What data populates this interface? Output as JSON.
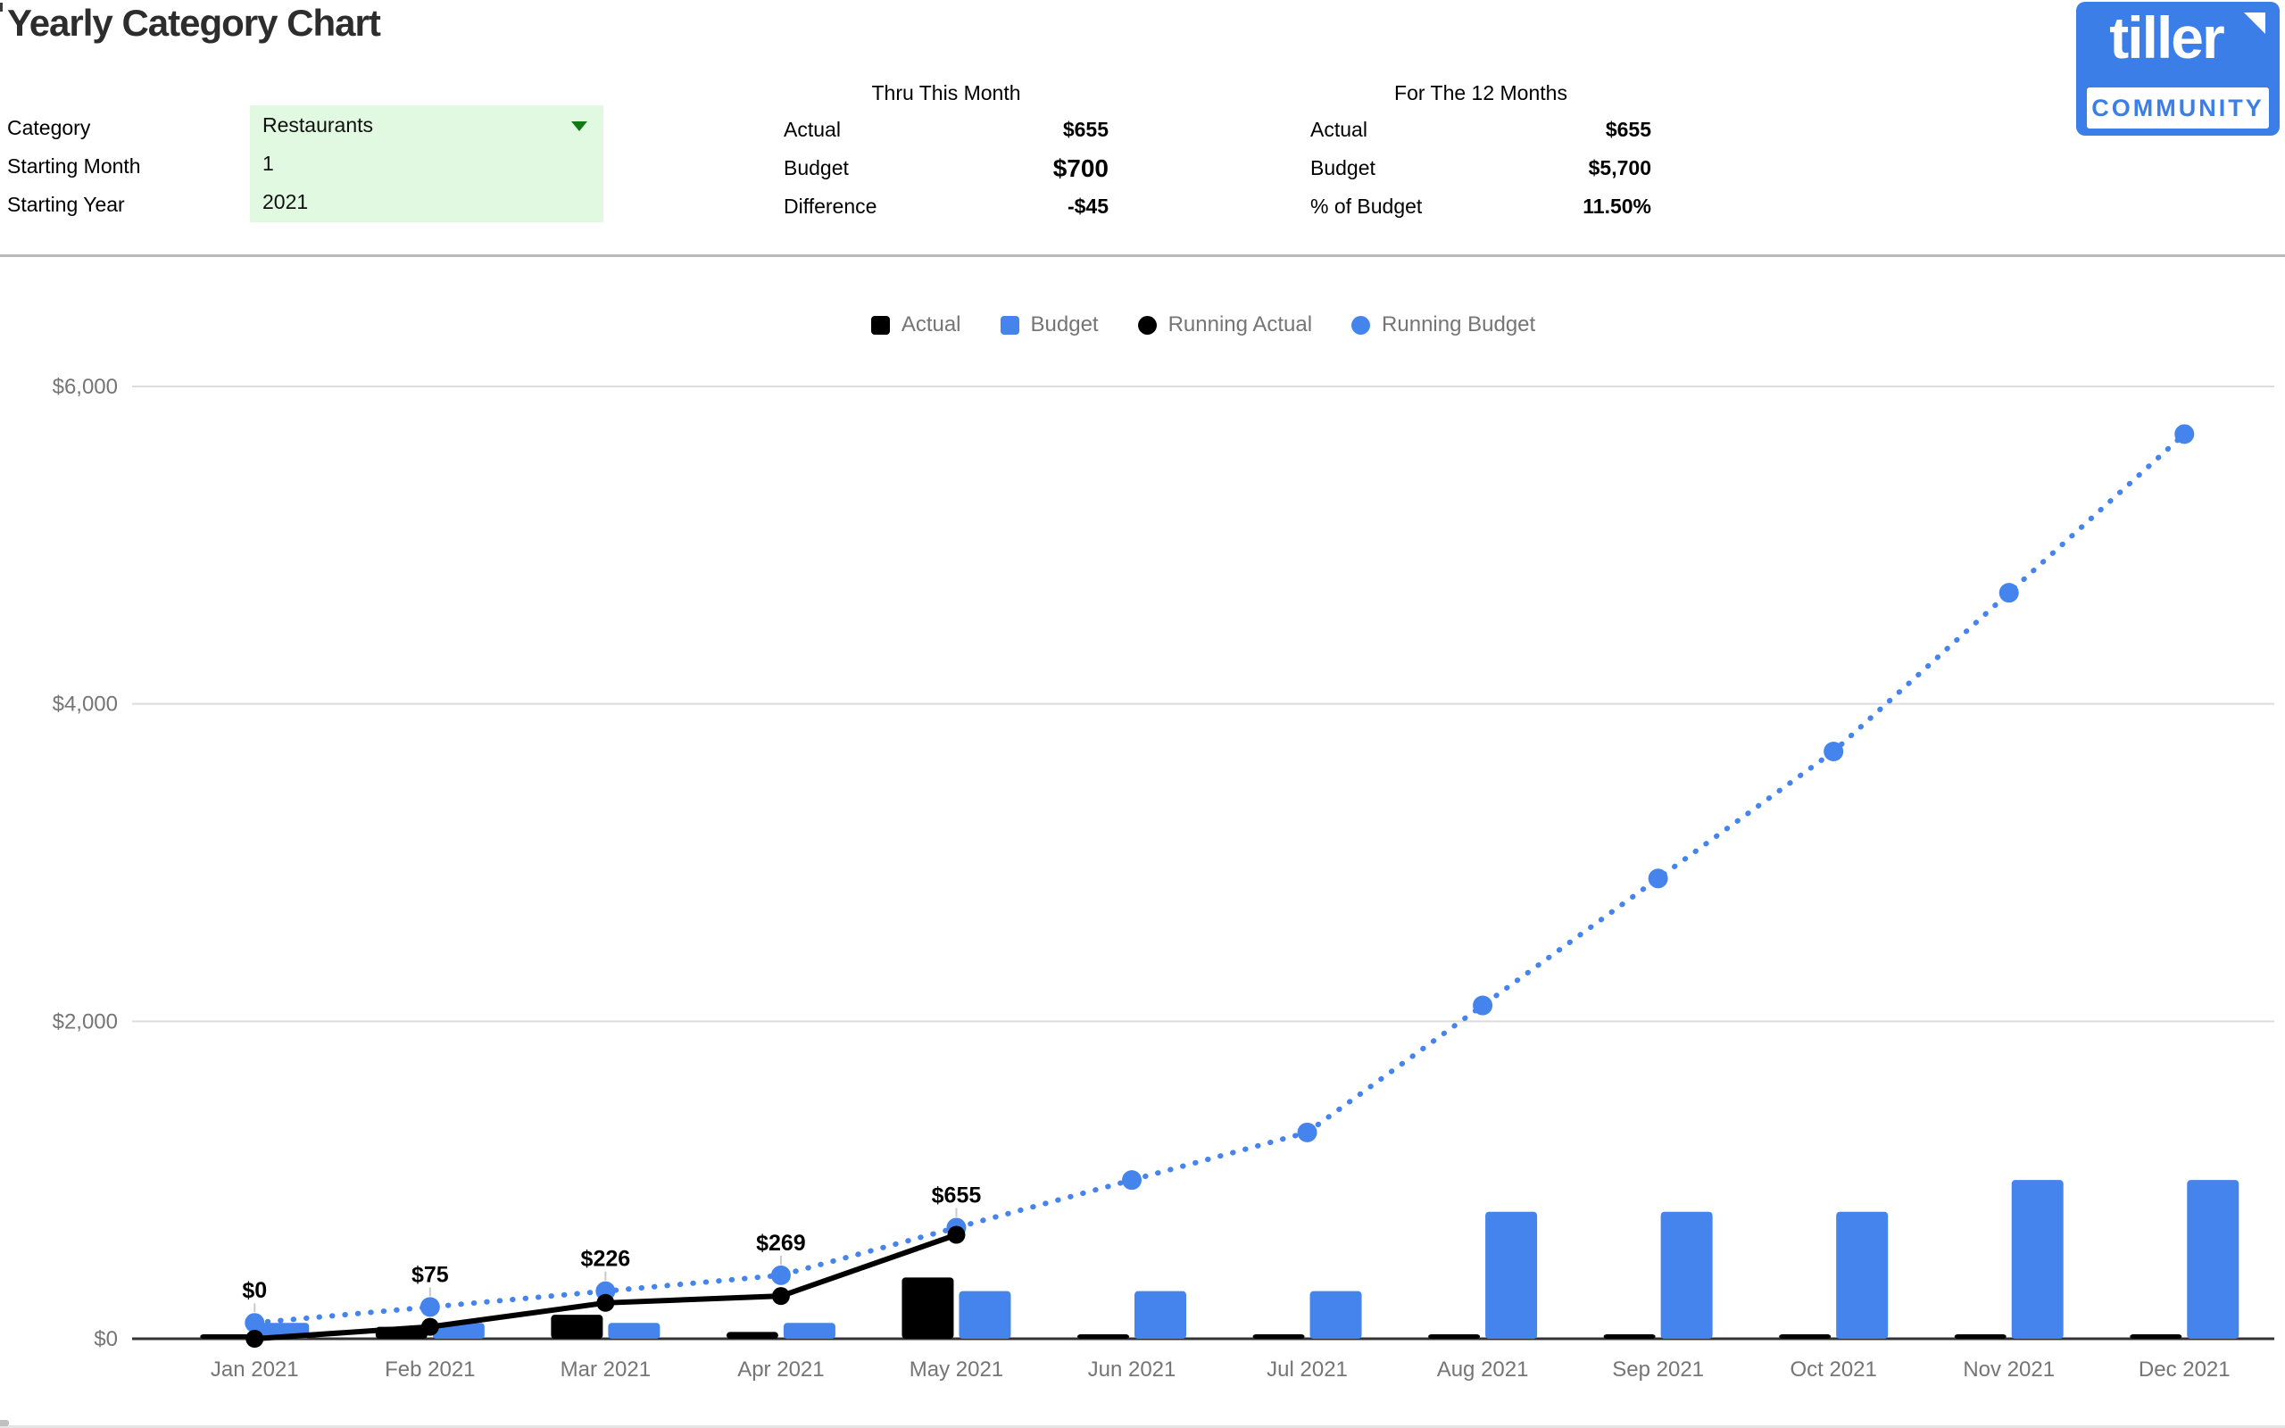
{
  "page": {
    "title": "Yearly Category Chart"
  },
  "controls": {
    "category": {
      "label": "Category",
      "value": "Restaurants"
    },
    "starting_month": {
      "label": "Starting Month",
      "value": "1"
    },
    "starting_year": {
      "label": "Starting Year",
      "value": "2021"
    }
  },
  "summary_thru_month": {
    "heading": "Thru This Month",
    "rows": [
      {
        "label": "Actual",
        "value": "$655"
      },
      {
        "label": "Budget",
        "value": "$700"
      },
      {
        "label": "Difference",
        "value": "-$45"
      }
    ]
  },
  "summary_12_months": {
    "heading": "For The 12 Months",
    "rows": [
      {
        "label": "Actual",
        "value": "$655"
      },
      {
        "label": "Budget",
        "value": "$5,700"
      },
      {
        "label": "% of Budget",
        "value": "11.50%"
      }
    ]
  },
  "logo": {
    "brand": "tiller",
    "community": "COMMUNITY"
  },
  "chart_data": {
    "type": "combo-bar-line",
    "title": "",
    "categories": [
      "Jan 2021",
      "Feb 2021",
      "Mar 2021",
      "Apr 2021",
      "May 2021",
      "Jun 2021",
      "Jul 2021",
      "Aug 2021",
      "Sep 2021",
      "Oct 2021",
      "Nov 2021",
      "Dec 2021"
    ],
    "series": [
      {
        "name": "Actual",
        "kind": "bar",
        "color": "#000000",
        "values": [
          0,
          75,
          151,
          43,
          386,
          0,
          0,
          0,
          0,
          0,
          0,
          0
        ]
      },
      {
        "name": "Budget",
        "kind": "bar",
        "color": "#4584ec",
        "values": [
          100,
          100,
          100,
          100,
          300,
          300,
          300,
          800,
          800,
          800,
          1000,
          1000
        ]
      },
      {
        "name": "Running Actual",
        "kind": "line",
        "color": "#000000",
        "values": [
          0,
          75,
          226,
          269,
          655,
          null,
          null,
          null,
          null,
          null,
          null,
          null
        ],
        "point_labels": [
          "$0",
          "$75",
          "$226",
          "$269",
          "$655"
        ]
      },
      {
        "name": "Running Budget",
        "kind": "dotted-line",
        "color": "#4584ec",
        "values": [
          100,
          200,
          300,
          400,
          700,
          1000,
          1300,
          2100,
          2900,
          3700,
          4700,
          5700
        ]
      }
    ],
    "y_axis": {
      "min": 0,
      "max": 6000,
      "tick_values": [
        0,
        2000,
        4000,
        6000
      ],
      "tick_labels": [
        "$0",
        "$2,000",
        "$4,000",
        "$6,000"
      ]
    },
    "grid": true,
    "legend_position": "top"
  },
  "colors": {
    "chart_blue": "#4584ec",
    "logo_blue": "#3b7ee8",
    "bar_black": "#000000",
    "green_cell_bg": "#e1f9e1",
    "dropdown_green": "#127a12",
    "label_gray": "#757575",
    "grid_gray": "#dcdcdc",
    "axis_dark": "#333333",
    "annotation_stem": "#c9c9c9"
  }
}
